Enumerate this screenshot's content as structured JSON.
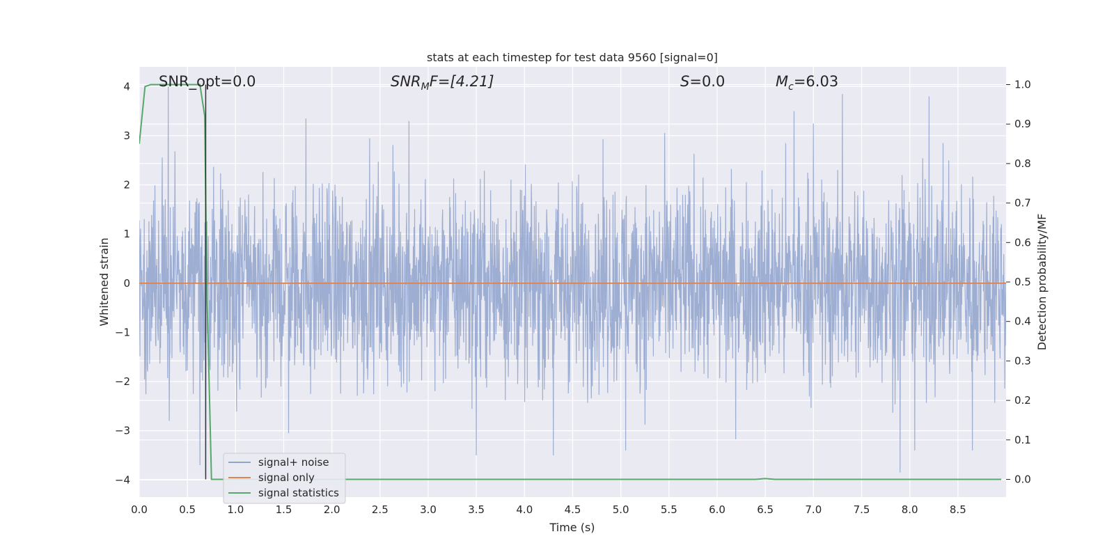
{
  "chart_data": {
    "type": "line",
    "title": "stats at each timestep for test data 9560 [signal=0]",
    "xlabel": "Time (s)",
    "ylabel_left": "Whitened strain",
    "ylabel_right": "Detection probability/MF",
    "xlim": [
      0.0,
      9.0
    ],
    "ylim_left": [
      -4.35,
      4.4
    ],
    "ylim_right": [
      -0.045,
      1.045
    ],
    "x_ticks": [
      "0.0",
      "0.5",
      "1.0",
      "1.5",
      "2.0",
      "2.5",
      "3.0",
      "3.5",
      "4.0",
      "4.5",
      "5.0",
      "5.5",
      "6.0",
      "6.5",
      "7.0",
      "7.5",
      "8.0",
      "8.5"
    ],
    "x_tick_values": [
      0.0,
      0.5,
      1.0,
      1.5,
      2.0,
      2.5,
      3.0,
      3.5,
      4.0,
      4.5,
      5.0,
      5.5,
      6.0,
      6.5,
      7.0,
      7.5,
      8.0,
      8.5
    ],
    "y_left_ticks": [
      "−4",
      "−3",
      "−2",
      "−1",
      "0",
      "1",
      "2",
      "3",
      "4"
    ],
    "y_left_tick_values": [
      -4,
      -3,
      -2,
      -1,
      0,
      1,
      2,
      3,
      4
    ],
    "y_right_ticks": [
      "0.0",
      "0.1",
      "0.2",
      "0.3",
      "0.4",
      "0.5",
      "0.6",
      "0.7",
      "0.8",
      "0.9",
      "1.0"
    ],
    "y_right_tick_values": [
      0.0,
      0.1,
      0.2,
      0.3,
      0.4,
      0.5,
      0.6,
      0.7,
      0.8,
      0.9,
      1.0
    ],
    "grid": true,
    "legend_position": "lower-left",
    "annotations": {
      "snr_opt": "SNR_opt=0.0",
      "snr_mf_main": "SNR",
      "snr_mf_sub": "M",
      "snr_mf_rest": "F=[4.21]",
      "s_main": "S",
      "s_rest": "=0.0",
      "mc_main": "M",
      "mc_sub": "c",
      "mc_rest": "=6.03"
    },
    "series": [
      {
        "name": "signal+ noise",
        "color": "#8fa3cc",
        "axis": "left",
        "noise_envelope": {
          "typical_amplitude": 1.0,
          "peak_min": -3.85,
          "peak_max": 4.0
        },
        "peaks": [
          {
            "x": 0.3,
            "y": 4.0
          },
          {
            "x": 0.31,
            "y": -2.8
          },
          {
            "x": 0.63,
            "y": -3.7
          },
          {
            "x": 0.69,
            "y": -3.9
          },
          {
            "x": 1.55,
            "y": -3.05
          },
          {
            "x": 1.73,
            "y": 3.35
          },
          {
            "x": 2.8,
            "y": 3.3
          },
          {
            "x": 3.5,
            "y": -3.5
          },
          {
            "x": 4.3,
            "y": -3.5
          },
          {
            "x": 5.05,
            "y": 3.45
          },
          {
            "x": 5.05,
            "y": -3.4
          },
          {
            "x": 6.8,
            "y": 3.5
          },
          {
            "x": 7.0,
            "y": 3.25
          },
          {
            "x": 7.3,
            "y": 3.85
          },
          {
            "x": 7.9,
            "y": -3.85
          },
          {
            "x": 8.05,
            "y": -3.4
          },
          {
            "x": 8.2,
            "y": 3.8
          },
          {
            "x": 8.65,
            "y": -3.4
          }
        ]
      },
      {
        "name": "signal only",
        "color": "#dd8452",
        "axis": "left",
        "x": [
          0.0,
          9.0
        ],
        "y": [
          0.0,
          0.0
        ]
      },
      {
        "name": "signal statistics",
        "color": "#55a868",
        "axis": "right",
        "x": [
          0.0,
          0.06,
          0.12,
          0.2,
          0.3,
          0.4,
          0.5,
          0.6,
          0.63,
          0.68,
          0.7,
          0.75,
          0.8,
          1.5,
          3.0,
          5.0,
          6.4,
          6.5,
          6.6,
          8.0,
          8.95
        ],
        "y": [
          0.85,
          0.995,
          1.0,
          1.0,
          1.0,
          1.0,
          1.0,
          1.0,
          1.0,
          0.92,
          0.5,
          0.0,
          0.0,
          0.0,
          0.0,
          0.0,
          0.0,
          0.002,
          0.0,
          0.0,
          0.0
        ]
      },
      {
        "name": "",
        "color": "#333333",
        "axis": "right",
        "x": [
          0.69,
          0.69
        ],
        "y": [
          0.0,
          1.0
        ]
      }
    ]
  },
  "legend": [
    {
      "label": "signal+ noise",
      "color": "#8fa3cc"
    },
    {
      "label": "signal only",
      "color": "#dd8452"
    },
    {
      "label": "signal statistics",
      "color": "#55a868"
    }
  ],
  "colors": {
    "plot_background": "#eaeaf2",
    "grid": "#ffffff",
    "text": "#262626"
  }
}
